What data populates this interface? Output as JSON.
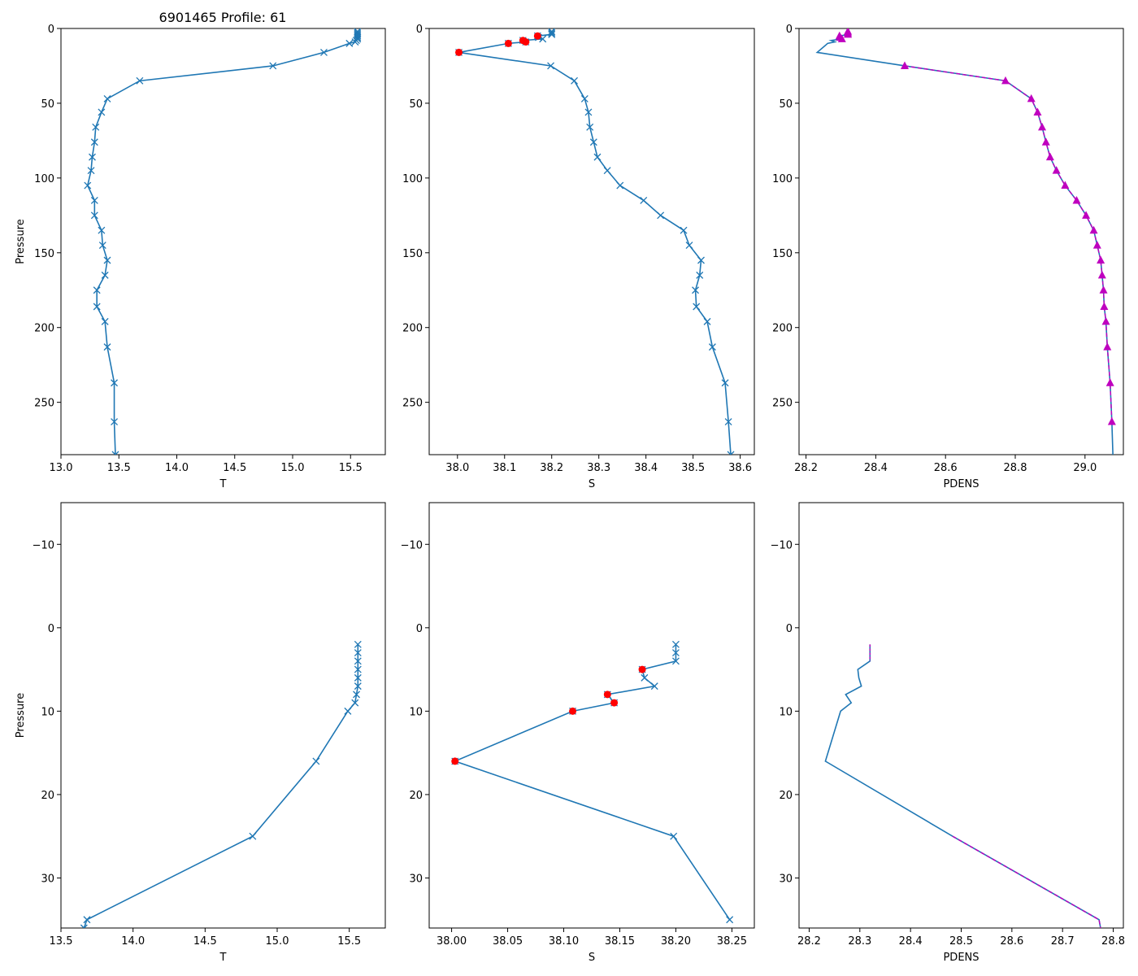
{
  "figure_title": "6901465 Profile: 61",
  "colors": {
    "line": "#1f77b4",
    "flag": "#ff0000",
    "density": "#bf00bf"
  },
  "chart_data": [
    {
      "id": "top-temperature",
      "type": "line",
      "xlabel": "T",
      "ylabel": "Pressure",
      "xlim": [
        13.0,
        15.8
      ],
      "ylim": [
        285,
        0
      ],
      "xticks": [
        13.0,
        13.5,
        14.0,
        14.5,
        15.0,
        15.5
      ],
      "xtick_labels": [
        "13.0",
        "13.5",
        "14.0",
        "14.5",
        "15.0",
        "15.5"
      ],
      "yticks": [
        0,
        50,
        100,
        150,
        200,
        250
      ],
      "ytick_labels": [
        "0",
        "50",
        "100",
        "150",
        "200",
        "250"
      ],
      "series": [
        {
          "name": "T",
          "marker": "x",
          "values": [
            [
              15.56,
              2
            ],
            [
              15.56,
              3
            ],
            [
              15.56,
              4
            ],
            [
              15.56,
              5
            ],
            [
              15.56,
              6
            ],
            [
              15.56,
              7
            ],
            [
              15.55,
              8
            ],
            [
              15.54,
              9
            ],
            [
              15.49,
              10
            ],
            [
              15.27,
              16
            ],
            [
              14.83,
              25
            ],
            [
              13.68,
              35
            ],
            [
              13.4,
              47
            ],
            [
              13.35,
              56
            ],
            [
              13.3,
              66
            ],
            [
              13.29,
              76
            ],
            [
              13.27,
              86
            ],
            [
              13.26,
              95
            ],
            [
              13.23,
              105
            ],
            [
              13.29,
              115
            ],
            [
              13.29,
              125
            ],
            [
              13.35,
              135
            ],
            [
              13.36,
              145
            ],
            [
              13.4,
              155
            ],
            [
              13.38,
              165
            ],
            [
              13.31,
              175
            ],
            [
              13.31,
              186
            ],
            [
              13.38,
              196
            ],
            [
              13.4,
              213
            ],
            [
              13.46,
              237
            ],
            [
              13.46,
              263
            ],
            [
              13.47,
              285
            ]
          ]
        }
      ]
    },
    {
      "id": "top-salinity",
      "type": "line",
      "xlabel": "S",
      "ylabel": "",
      "xlim": [
        37.94,
        38.63
      ],
      "ylim": [
        285,
        0
      ],
      "xticks": [
        38.0,
        38.1,
        38.2,
        38.3,
        38.4,
        38.5,
        38.6
      ],
      "xtick_labels": [
        "38.0",
        "38.1",
        "38.2",
        "38.3",
        "38.4",
        "38.5",
        "38.6"
      ],
      "yticks": [
        0,
        50,
        100,
        150,
        200,
        250
      ],
      "ytick_labels": [
        "0",
        "50",
        "100",
        "150",
        "200",
        "250"
      ],
      "series": [
        {
          "name": "S",
          "marker": "x",
          "values": [
            [
              38.2,
              2
            ],
            [
              38.2,
              3
            ],
            [
              38.2,
              4
            ],
            [
              38.17,
              5
            ],
            [
              38.172,
              6
            ],
            [
              38.181,
              7
            ],
            [
              38.139,
              8
            ],
            [
              38.145,
              9
            ],
            [
              38.108,
              10
            ],
            [
              38.003,
              16
            ],
            [
              38.198,
              25
            ],
            [
              38.248,
              35
            ],
            [
              38.27,
              47
            ],
            [
              38.278,
              56
            ],
            [
              38.281,
              66
            ],
            [
              38.289,
              76
            ],
            [
              38.297,
              86
            ],
            [
              38.318,
              95
            ],
            [
              38.345,
              105
            ],
            [
              38.395,
              115
            ],
            [
              38.431,
              125
            ],
            [
              38.48,
              135
            ],
            [
              38.492,
              145
            ],
            [
              38.517,
              155
            ],
            [
              38.514,
              165
            ],
            [
              38.505,
              175
            ],
            [
              38.507,
              186
            ],
            [
              38.53,
              196
            ],
            [
              38.541,
              213
            ],
            [
              38.568,
              237
            ],
            [
              38.575,
              263
            ],
            [
              38.58,
              285
            ]
          ]
        },
        {
          "name": "flagged",
          "marker": "o",
          "values": [
            [
              38.17,
              5
            ],
            [
              38.139,
              8
            ],
            [
              38.145,
              9
            ],
            [
              38.108,
              10
            ],
            [
              38.003,
              16
            ]
          ]
        }
      ]
    },
    {
      "id": "top-density",
      "type": "line",
      "xlabel": "PDENS",
      "ylabel": "",
      "xlim": [
        28.18,
        29.11
      ],
      "ylim": [
        285,
        0
      ],
      "xticks": [
        28.2,
        28.4,
        28.6,
        28.8,
        29.0
      ],
      "xtick_labels": [
        "28.2",
        "28.4",
        "28.6",
        "28.8",
        "29.0"
      ],
      "yticks": [
        0,
        50,
        100,
        150,
        200,
        250
      ],
      "ytick_labels": [
        "0",
        "50",
        "100",
        "150",
        "200",
        "250"
      ],
      "series": [
        {
          "name": "PDENS",
          "marker": "none",
          "values": [
            [
              28.32,
              2
            ],
            [
              28.32,
              3
            ],
            [
              28.32,
              4
            ],
            [
              28.296,
              5
            ],
            [
              28.298,
              6
            ],
            [
              28.303,
              7
            ],
            [
              28.272,
              8
            ],
            [
              28.283,
              9
            ],
            [
              28.262,
              10
            ],
            [
              28.232,
              16
            ],
            [
              28.483,
              25
            ],
            [
              28.772,
              35
            ],
            [
              28.846,
              47
            ],
            [
              28.864,
              56
            ],
            [
              28.877,
              66
            ],
            [
              28.888,
              76
            ],
            [
              28.9,
              86
            ],
            [
              28.918,
              95
            ],
            [
              28.943,
              105
            ],
            [
              28.976,
              115
            ],
            [
              29.003,
              125
            ],
            [
              29.025,
              135
            ],
            [
              29.035,
              145
            ],
            [
              29.045,
              155
            ],
            [
              29.049,
              165
            ],
            [
              29.053,
              175
            ],
            [
              29.055,
              186
            ],
            [
              29.06,
              196
            ],
            [
              29.064,
              213
            ],
            [
              29.072,
              237
            ],
            [
              29.077,
              263
            ],
            [
              29.08,
              285
            ]
          ]
        },
        {
          "name": "PDENS points",
          "marker": "triangle",
          "values": [
            [
              28.32,
              2
            ],
            [
              28.32,
              3
            ],
            [
              28.32,
              4
            ],
            [
              28.296,
              5
            ],
            [
              28.298,
              6
            ],
            [
              28.303,
              7
            ],
            [
              28.483,
              25
            ],
            [
              28.772,
              35
            ],
            [
              28.846,
              47
            ],
            [
              28.864,
              56
            ],
            [
              28.877,
              66
            ],
            [
              28.888,
              76
            ],
            [
              28.9,
              86
            ],
            [
              28.918,
              95
            ],
            [
              28.943,
              105
            ],
            [
              28.976,
              115
            ],
            [
              29.003,
              125
            ],
            [
              29.025,
              135
            ],
            [
              29.035,
              145
            ],
            [
              29.045,
              155
            ],
            [
              29.049,
              165
            ],
            [
              29.053,
              175
            ],
            [
              29.055,
              186
            ],
            [
              29.06,
              196
            ],
            [
              29.064,
              213
            ],
            [
              29.072,
              237
            ],
            [
              29.077,
              263
            ]
          ]
        }
      ]
    },
    {
      "id": "bottom-temperature",
      "type": "line",
      "xlabel": "T",
      "ylabel": "Pressure",
      "xlim": [
        13.5,
        15.75
      ],
      "ylim": [
        36,
        -15
      ],
      "xticks": [
        13.5,
        14.0,
        14.5,
        15.0,
        15.5
      ],
      "xtick_labels": [
        "13.5",
        "14.0",
        "14.5",
        "15.0",
        "15.5"
      ],
      "yticks": [
        -10,
        0,
        10,
        20,
        30
      ],
      "ytick_labels": [
        "−10",
        "0",
        "10",
        "20",
        "30"
      ],
      "series": [
        {
          "name": "T",
          "marker": "x",
          "values": [
            [
              15.56,
              2
            ],
            [
              15.56,
              3
            ],
            [
              15.56,
              4
            ],
            [
              15.56,
              5
            ],
            [
              15.56,
              6
            ],
            [
              15.56,
              7
            ],
            [
              15.55,
              8
            ],
            [
              15.54,
              9
            ],
            [
              15.49,
              10
            ],
            [
              15.27,
              16
            ],
            [
              14.83,
              25
            ],
            [
              13.68,
              35
            ],
            [
              13.66,
              36
            ]
          ]
        }
      ]
    },
    {
      "id": "bottom-salinity",
      "type": "line",
      "xlabel": "S",
      "ylabel": "",
      "xlim": [
        37.98,
        38.27
      ],
      "ylim": [
        36,
        -15
      ],
      "xticks": [
        38.0,
        38.05,
        38.1,
        38.15,
        38.2,
        38.25
      ],
      "xtick_labels": [
        "38.00",
        "38.05",
        "38.10",
        "38.15",
        "38.20",
        "38.25"
      ],
      "yticks": [
        -10,
        0,
        10,
        20,
        30
      ],
      "ytick_labels": [
        "−10",
        "0",
        "10",
        "20",
        "30"
      ],
      "series": [
        {
          "name": "S",
          "marker": "x",
          "values": [
            [
              38.2,
              2
            ],
            [
              38.2,
              3
            ],
            [
              38.2,
              4
            ],
            [
              38.17,
              5
            ],
            [
              38.172,
              6
            ],
            [
              38.181,
              7
            ],
            [
              38.139,
              8
            ],
            [
              38.145,
              9
            ],
            [
              38.108,
              10
            ],
            [
              38.003,
              16
            ],
            [
              38.198,
              25
            ],
            [
              38.248,
              35
            ]
          ]
        },
        {
          "name": "flagged",
          "marker": "o",
          "values": [
            [
              38.17,
              5
            ],
            [
              38.139,
              8
            ],
            [
              38.145,
              9
            ],
            [
              38.108,
              10
            ],
            [
              38.003,
              16
            ]
          ]
        }
      ]
    },
    {
      "id": "bottom-density",
      "type": "line",
      "xlabel": "PDENS",
      "ylabel": "",
      "xlim": [
        28.18,
        28.82
      ],
      "ylim": [
        36,
        -15
      ],
      "xticks": [
        28.2,
        28.3,
        28.4,
        28.5,
        28.6,
        28.7,
        28.8
      ],
      "xtick_labels": [
        "28.2",
        "28.3",
        "28.4",
        "28.5",
        "28.6",
        "28.7",
        "28.8"
      ],
      "yticks": [
        -10,
        0,
        10,
        20,
        30
      ],
      "ytick_labels": [
        "−10",
        "0",
        "10",
        "20",
        "30"
      ],
      "series": [
        {
          "name": "PDENS",
          "marker": "none",
          "values": [
            [
              28.32,
              2
            ],
            [
              28.32,
              3
            ],
            [
              28.32,
              4
            ],
            [
              28.296,
              5
            ],
            [
              28.298,
              6
            ],
            [
              28.303,
              7
            ],
            [
              28.272,
              8
            ],
            [
              28.283,
              9
            ],
            [
              28.262,
              10
            ],
            [
              28.232,
              16
            ],
            [
              28.483,
              25
            ],
            [
              28.772,
              35
            ],
            [
              28.775,
              36
            ]
          ]
        }
      ]
    }
  ]
}
